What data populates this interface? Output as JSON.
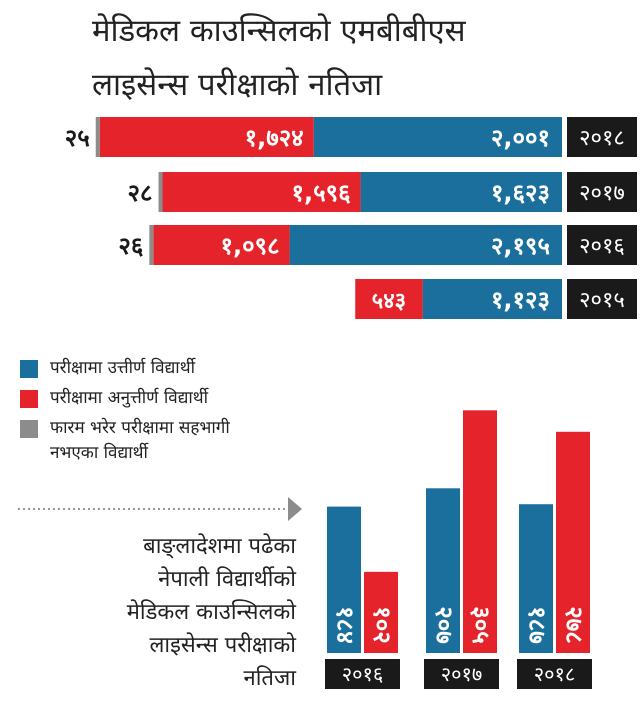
{
  "title": {
    "line1": "मेडिकल काउन्सिलको एमबीबीएस",
    "line2": "लाइसेन्स परीक्षाको नतिजा"
  },
  "colors": {
    "passed": "#1b6f9c",
    "failed": "#e5232b",
    "absent": "#8c8c8c",
    "year_box": "#1a1a1a"
  },
  "legend": [
    {
      "key": "passed",
      "label": "परीक्षामा उत्तीर्ण विद्यार्थी"
    },
    {
      "key": "failed",
      "label": "परीक्षामा अनुत्तीर्ण विद्यार्थी"
    },
    {
      "key": "absent",
      "label": "फारम भरेर परीक्षामा सहभागी नभएका विद्यार्थी"
    }
  ],
  "caption": {
    "lines": [
      "बाङ्लादेशमा पढेका",
      "नेपाली विद्यार्थीको",
      "मेडिकल काउन्सिलको",
      "लाइसेन्स परीक्षाको",
      "नतिजा"
    ]
  },
  "chart_data": [
    {
      "type": "bar",
      "orientation": "horizontal",
      "stacked": true,
      "categories": [
        "२०१८",
        "२०१७",
        "२०१६",
        "२०१५"
      ],
      "series": [
        {
          "key": "absent",
          "values": [
            25,
            28,
            26,
            0
          ],
          "labels": [
            "२५",
            "२८",
            "२६",
            ""
          ]
        },
        {
          "key": "failed",
          "values": [
            1724,
            1596,
            1098,
            543
          ],
          "labels": [
            "१,७२४",
            "१,५९६",
            "१,०९८",
            "५४३"
          ]
        },
        {
          "key": "passed",
          "values": [
            2001,
            1623,
            2195,
            1123
          ],
          "labels": [
            "२,००१",
            "१,६२३",
            "२,१९५",
            "१,१२३"
          ]
        }
      ]
    },
    {
      "type": "bar",
      "orientation": "vertical",
      "categories": [
        "२०१६",
        "२०१७",
        "२०१८"
      ],
      "series": [
        {
          "key": "passed",
          "values": [
            184,
            207,
            187
          ],
          "labels": [
            "१८४",
            "२०७",
            "१८७"
          ]
        },
        {
          "key": "failed",
          "values": [
            102,
            305,
            278
          ],
          "labels": [
            "१०२",
            "३०५",
            "२७८"
          ]
        }
      ]
    }
  ]
}
